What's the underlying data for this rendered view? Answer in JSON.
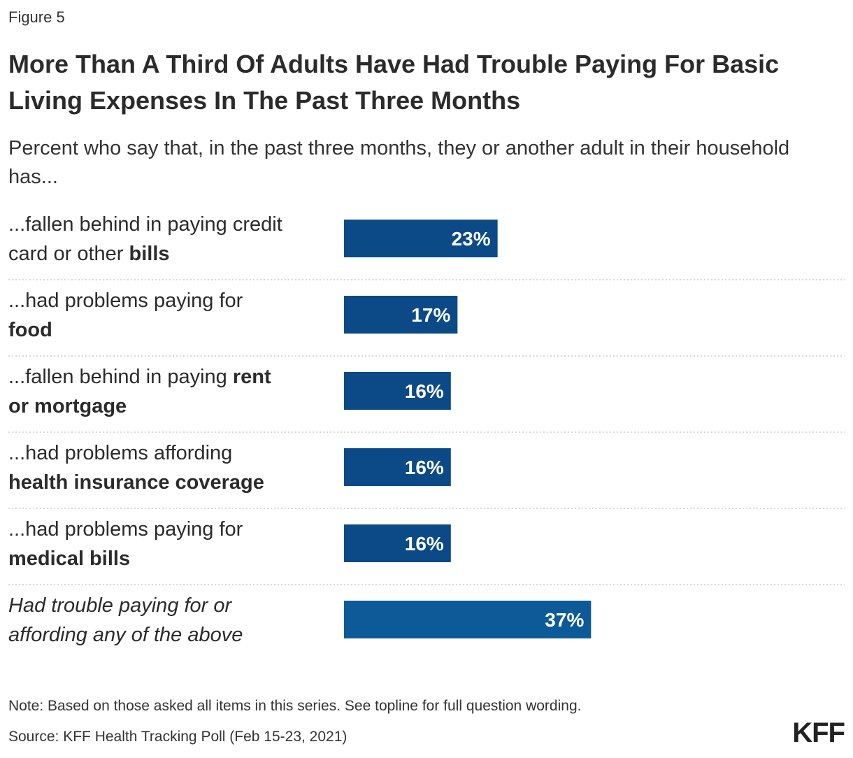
{
  "figure_label": "Figure 5",
  "title": "More Than A Third Of Adults Have Had Trouble Paying For Basic Living Expenses In The Past Three Months",
  "subtitle": "Percent who say that, in the past three months, they or another adult in their household has...",
  "chart_data": {
    "type": "bar",
    "orientation": "horizontal",
    "title": "More Than A Third Of Adults Have Had Trouble Paying For Basic Living Expenses In The Past Three Months",
    "subtitle": "Percent who say that, in the past three months, they or another adult in their household has...",
    "xlabel": "",
    "ylabel": "",
    "xlim": [
      0,
      60
    ],
    "grid": false,
    "categories": [
      {
        "lines": [
          [
            {
              "t": "...fallen behind in paying credit",
              "b": false
            }
          ],
          [
            {
              "t": "card or other ",
              "b": false
            },
            {
              "t": "bills",
              "b": true
            }
          ]
        ],
        "italic": false
      },
      {
        "lines": [
          [
            {
              "t": "...had problems paying for",
              "b": false
            }
          ],
          [
            {
              "t": "food",
              "b": true
            }
          ]
        ],
        "italic": false
      },
      {
        "lines": [
          [
            {
              "t": "...fallen behind in paying ",
              "b": false
            },
            {
              "t": "rent",
              "b": true
            }
          ],
          [
            {
              "t": "or mortgage",
              "b": true
            }
          ]
        ],
        "italic": false
      },
      {
        "lines": [
          [
            {
              "t": "...had problems affording",
              "b": false
            }
          ],
          [
            {
              "t": "health insurance coverage",
              "b": true
            }
          ]
        ],
        "italic": false
      },
      {
        "lines": [
          [
            {
              "t": "...had problems paying for",
              "b": false
            }
          ],
          [
            {
              "t": "medical bills",
              "b": true
            }
          ]
        ],
        "italic": false
      },
      {
        "lines": [
          [
            {
              "t": "Had trouble paying for or",
              "b": false
            }
          ],
          [
            {
              "t": "affording any of the above",
              "b": false
            }
          ]
        ],
        "italic": true
      }
    ],
    "values": [
      23,
      17,
      16,
      16,
      16,
      37
    ],
    "value_labels": [
      "23%",
      "17%",
      "16%",
      "16%",
      "16%",
      "37%"
    ],
    "bar_colors": [
      "#0b4a86",
      "#0b4a86",
      "#0b4a86",
      "#0b4a86",
      "#0b4a86",
      "#0c5a98"
    ]
  },
  "footer": {
    "note": "Note: Based on those asked all items in this series. See topline for full question wording.",
    "source": "Source: KFF Health Tracking Poll (Feb 15-23, 2021)"
  },
  "logo": "KFF",
  "colors": {
    "bar": "#0b4a86",
    "bar_total": "#0c5a98",
    "separator": "#cccccc",
    "text": "#222222"
  }
}
